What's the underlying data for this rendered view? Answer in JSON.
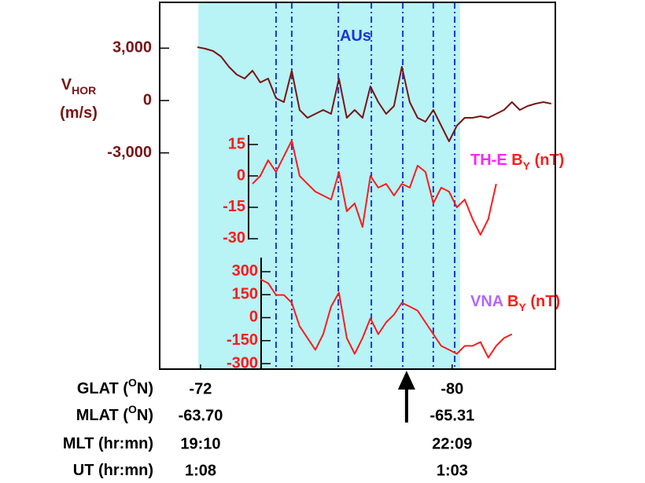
{
  "chart_data": {
    "type": "line",
    "title": "AUs",
    "title_color": "#1a35d6",
    "xlim": [
      -70.7,
      -83.28
    ],
    "x": [
      -71.9,
      -72.15,
      -72.4,
      -72.65,
      -72.9,
      -73.15,
      -73.4,
      -73.65,
      -73.9,
      -74.15,
      -74.4,
      -74.65,
      -74.9,
      -75.15,
      -75.4,
      -75.65,
      -75.9,
      -76.15,
      -76.4,
      -76.65,
      -76.9,
      -77.15,
      -77.4,
      -77.65,
      -77.9,
      -78.15,
      -78.4,
      -78.65,
      -78.9,
      -79.15,
      -79.4,
      -79.65,
      -79.9,
      -80.15,
      -80.4,
      -80.65,
      -80.9,
      -81.15,
      -81.4,
      -81.65,
      -81.9,
      -82.15,
      -82.4,
      -82.65,
      -82.9,
      -83.15
    ],
    "xticks": [
      -72,
      -80
    ],
    "shade": [
      -71.93,
      -80.25
    ],
    "shade_color": "#b8f3f5",
    "markers": [
      -74.4,
      -74.9,
      -76.38,
      -77.43,
      -78.43,
      -79.4,
      -80.08
    ],
    "marker_color": "#1a35d6",
    "arrow_x": -78.55,
    "panels": [
      {
        "label_lines": [
          [
            {
              "text": "V",
              "style": "normal",
              "color": "#7a1414"
            },
            {
              "text": "HOR",
              "style": "sub",
              "color": "#7a1414"
            }
          ],
          [
            {
              "text": "(m/s)",
              "style": "normal",
              "color": "#7a1414"
            }
          ]
        ],
        "ylim": [
          -15390,
          5625
        ],
        "yticks": [
          {
            "value": 3000,
            "label": "3,000"
          },
          0,
          {
            "value": -3000,
            "label": "-3,000"
          }
        ],
        "tick_color": "#7a1414",
        "series": [
          {
            "color": "#7a1414",
            "values": [
              3060,
              2970,
              2835,
              2520,
              1935,
              1485,
              1260,
              1710,
              1035,
              1260,
              135,
              -90,
              1710,
              -540,
              -990,
              -765,
              -540,
              -765,
              1260,
              -990,
              -540,
              -990,
              810,
              -90,
              -765,
              -315,
              1935,
              -90,
              -990,
              -1215,
              -540,
              -1440,
              -2340,
              -1440,
              -990,
              -990,
              -900,
              -990,
              -765,
              -540,
              -90,
              -540,
              -315,
              -180,
              -90,
              -180
            ]
          }
        ]
      },
      {
        "label_lines": [
          [
            {
              "text": "TH-E",
              "style": "normal",
              "color": "#ff22ff"
            },
            {
              "text": " B",
              "style": "normal",
              "color": "#ff1a1a"
            },
            {
              "text": "Y",
              "style": "sub",
              "color": "#ff1a1a"
            },
            {
              "text": " (nT)",
              "style": "normal",
              "color": "#ff1a1a"
            }
          ]
        ],
        "ylim": [
          -30.4,
          19.5
        ],
        "yticks": [
          15,
          0,
          -15,
          -30
        ],
        "tick_color": "#ff1a1a",
        "series": [
          {
            "color": "#ff1a1a",
            "values": [
              null,
              null,
              null,
              null,
              null,
              null,
              null,
              -3.8,
              0,
              7.5,
              1.9,
              9.4,
              16.9,
              0,
              -3.8,
              -7.5,
              -9.4,
              -11.3,
              1.9,
              -16.9,
              -13.1,
              -24.4,
              0,
              -5.6,
              -3.8,
              -9.4,
              -3.8,
              -5.6,
              4.9,
              1.9,
              -13.1,
              -5.6,
              -7.5,
              -15,
              -11.3,
              -20.6,
              -28.1,
              -20.6,
              -3.8,
              null,
              null,
              null,
              null,
              null,
              null,
              null
            ]
          }
        ]
      },
      {
        "label_lines": [
          [
            {
              "text": "VNA",
              "style": "normal",
              "color": "#b366ff"
            },
            {
              "text": " B",
              "style": "normal",
              "color": "#ff1a1a"
            },
            {
              "text": "Y",
              "style": "sub",
              "color": "#ff1a1a"
            },
            {
              "text": " (nT)",
              "style": "normal",
              "color": "#ff1a1a"
            }
          ]
        ],
        "ylim": [
          -336,
          392
        ],
        "yticks": [
          300,
          150,
          0,
          -150,
          -300
        ],
        "tick_color": "#ff1a1a",
        "series": [
          {
            "color": "#ff1a1a",
            "values": [
              null,
              null,
              null,
              null,
              null,
              null,
              null,
              null,
              251,
              225,
              148,
              148,
              97,
              -56,
              -133,
              -210,
              -108,
              72,
              164,
              -133,
              -236,
              -133,
              -5,
              -108,
              -31,
              20,
              97,
              72,
              46,
              -31,
              -108,
              -184,
              -210,
              -236,
              -184,
              -184,
              -159,
              -261,
              -184,
              -133,
              -108,
              null,
              null,
              null,
              null,
              null
            ]
          }
        ]
      }
    ],
    "xlabel": [
      {
        "text": "GLAT (",
        "style": "normal"
      },
      {
        "text": "O",
        "style": "sup"
      },
      {
        "text": "N)",
        "style": "normal"
      }
    ],
    "rows": [
      {
        "label": [
          {
            "text": "MLAT (",
            "style": "normal"
          },
          {
            "text": "O",
            "style": "sup"
          },
          {
            "text": "N)",
            "style": "normal"
          }
        ],
        "values": [
          "-63.70",
          "-65.31"
        ]
      },
      {
        "label": [
          {
            "text": "MLT (hr:mn)",
            "style": "normal"
          }
        ],
        "values": [
          "19:10",
          "22:09"
        ]
      },
      {
        "label": [
          {
            "text": "UT (hr:mn)",
            "style": "normal"
          }
        ],
        "values": [
          "1:08",
          "1:03"
        ]
      }
    ]
  }
}
